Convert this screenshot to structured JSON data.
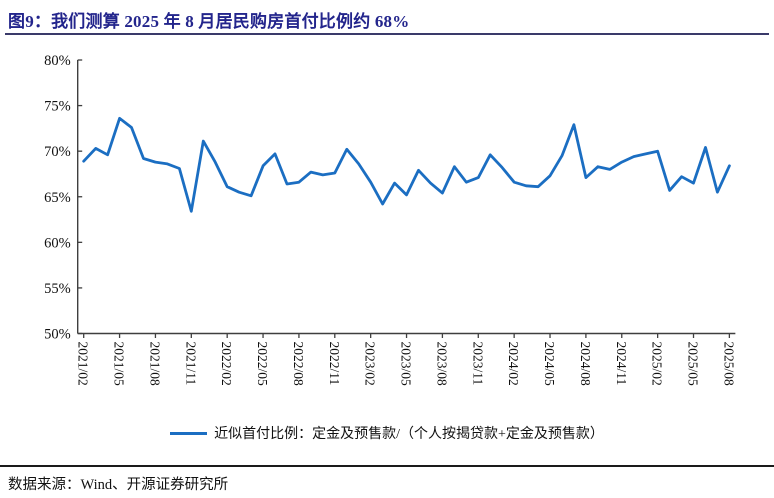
{
  "figure": {
    "title": "图9：我们测算 2025 年 8 月居民购房首付比例约 68%",
    "source_note": "数据来源：Wind、开源证券研究所"
  },
  "legend": {
    "label": "近似首付比例：定金及预售款/（个人按揭贷款+定金及预售款）"
  },
  "colors": {
    "line": "#1b6ec2",
    "title_text": "#23258c",
    "title_rule": "#3a3a6a",
    "axis": "#3f3f3f",
    "tick_label": "#111111",
    "footer_rule": "#1a1a1a"
  },
  "chart_data": {
    "type": "line",
    "title": "",
    "xlabel": "",
    "ylabel": "",
    "ylim": [
      50,
      80
    ],
    "grid": false,
    "legend_position": "bottom",
    "series_name": "近似首付比例：定金及预售款/（个人按揭贷款+定金及预售款）",
    "y_tick_labels": [
      "80%",
      "75%",
      "70%",
      "65%",
      "60%",
      "55%",
      "50%"
    ],
    "x_tick_interval": 3,
    "x_tick_labels": [
      "2021/02",
      "2021/05",
      "2021/08",
      "2021/11",
      "2022/02",
      "2022/05",
      "2022/08",
      "2022/11",
      "2023/02",
      "2023/05",
      "2023/08",
      "2023/11",
      "2024/02",
      "2024/05",
      "2024/08",
      "2024/11",
      "2025/02",
      "2025/05",
      "2025/08"
    ],
    "x": [
      "2021/02",
      "2021/03",
      "2021/04",
      "2021/05",
      "2021/06",
      "2021/07",
      "2021/08",
      "2021/09",
      "2021/10",
      "2021/11",
      "2021/12",
      "2022/01",
      "2022/02",
      "2022/03",
      "2022/04",
      "2022/05",
      "2022/06",
      "2022/07",
      "2022/08",
      "2022/09",
      "2022/10",
      "2022/11",
      "2022/12",
      "2023/01",
      "2023/02",
      "2023/03",
      "2023/04",
      "2023/05",
      "2023/06",
      "2023/07",
      "2023/08",
      "2023/09",
      "2023/10",
      "2023/11",
      "2023/12",
      "2024/01",
      "2024/02",
      "2024/03",
      "2024/04",
      "2024/05",
      "2024/06",
      "2024/07",
      "2024/08",
      "2024/09",
      "2024/10",
      "2024/11",
      "2024/12",
      "2025/01",
      "2025/02",
      "2025/03",
      "2025/04",
      "2025/05",
      "2025/06",
      "2025/07",
      "2025/08"
    ],
    "values": [
      68.9,
      70.3,
      69.6,
      73.6,
      72.6,
      69.2,
      68.8,
      68.6,
      68.1,
      63.4,
      71.1,
      68.8,
      66.1,
      65.5,
      65.1,
      68.4,
      69.7,
      66.4,
      66.6,
      67.7,
      67.4,
      67.6,
      70.2,
      68.6,
      66.6,
      64.2,
      66.5,
      65.2,
      67.9,
      66.5,
      65.4,
      68.3,
      66.6,
      67.1,
      69.6,
      68.2,
      66.6,
      66.2,
      66.1,
      67.3,
      69.5,
      72.9,
      67.1,
      68.3,
      68.0,
      68.8,
      69.4,
      69.7,
      70.0,
      65.7,
      67.2,
      66.5,
      70.4,
      65.5,
      68.4
    ]
  }
}
